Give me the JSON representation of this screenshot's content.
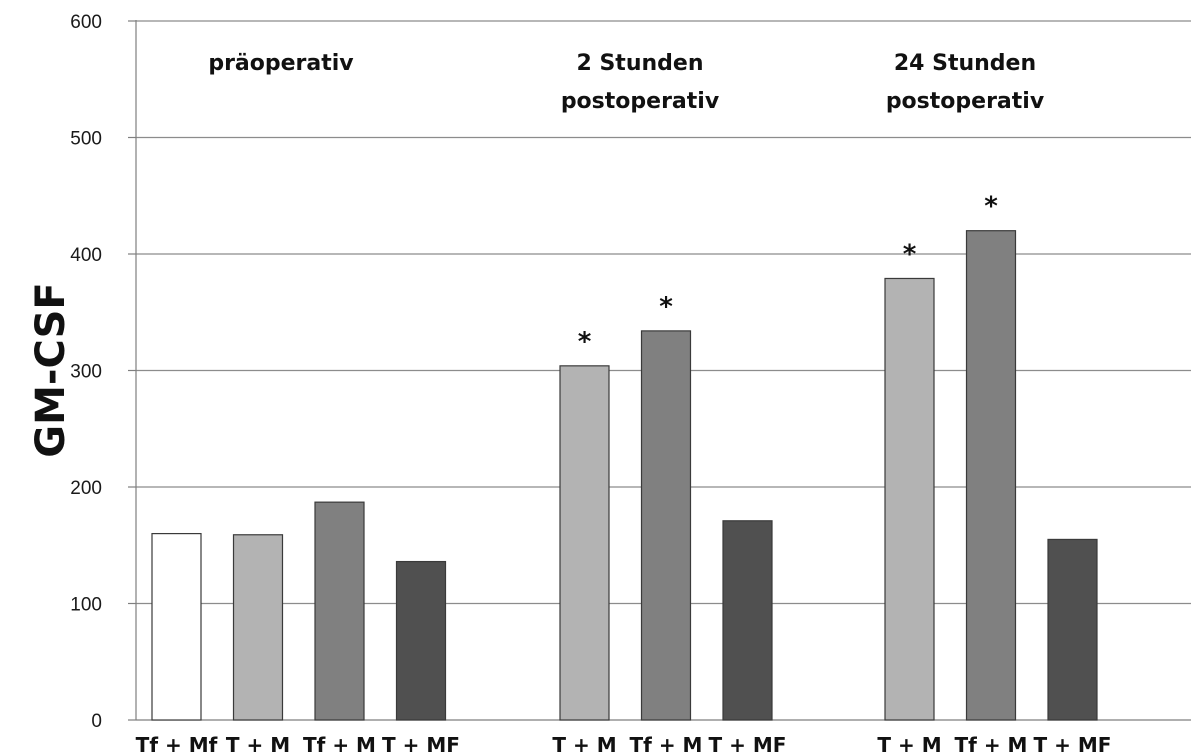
{
  "chart_data": {
    "type": "bar",
    "ylabel": "GM-CSF",
    "xlabel": "",
    "ylim": [
      0,
      600
    ],
    "yticks": [
      0,
      100,
      200,
      300,
      400,
      500,
      600
    ],
    "grid": true,
    "groups": [
      {
        "label": [
          "präoperativ"
        ],
        "bars": [
          {
            "category": "Tf + Mf",
            "value": 160,
            "color": "#ffffff",
            "star": false
          },
          {
            "category": "T + M",
            "value": 159,
            "color": "#b3b3b3",
            "star": false
          },
          {
            "category": "Tf + M",
            "value": 187,
            "color": "#808080",
            "star": false
          },
          {
            "category": "T + MF",
            "value": 136,
            "color": "#505050",
            "star": false
          }
        ]
      },
      {
        "label": [
          "2 Stunden",
          "postoperativ"
        ],
        "bars": [
          {
            "category": "T + M",
            "value": 304,
            "color": "#b3b3b3",
            "star": true
          },
          {
            "category": "Tf + M",
            "value": 334,
            "color": "#808080",
            "star": true
          },
          {
            "category": "T + MF",
            "value": 171,
            "color": "#505050",
            "star": false
          }
        ]
      },
      {
        "label": [
          "24 Stunden",
          "postoperativ"
        ],
        "bars": [
          {
            "category": "T + M",
            "value": 379,
            "color": "#b3b3b3",
            "star": true
          },
          {
            "category": "Tf + M",
            "value": 420,
            "color": "#808080",
            "star": true
          },
          {
            "category": "T + MF",
            "value": 155,
            "color": "#505050",
            "star": false
          }
        ]
      }
    ],
    "annotation_symbol": "*"
  }
}
